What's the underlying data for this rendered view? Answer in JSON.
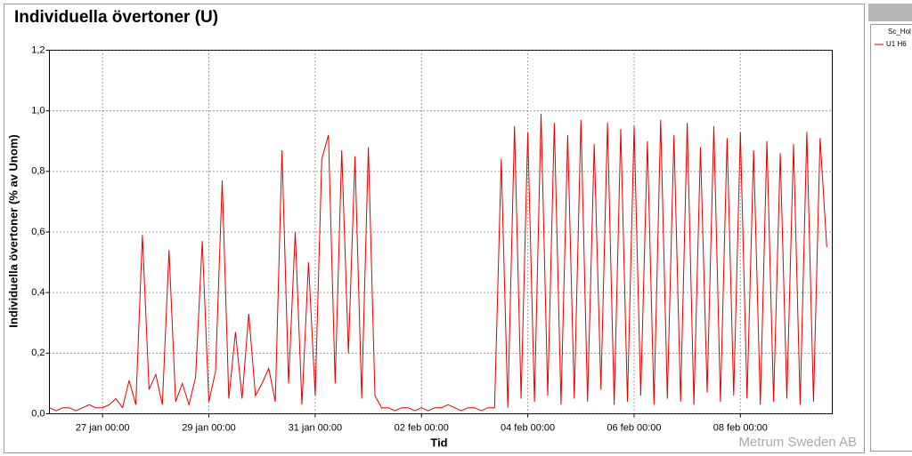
{
  "chart_data": {
    "type": "line",
    "title": "Individuella övertoner (U)",
    "x_label": "Tid",
    "y_label": "Individuella övertoner (% av Unom)",
    "watermark": "Metrum Sweden AB",
    "legend_title": "Sc_Hol",
    "grid": true,
    "xlim": [
      "26 jan 00:00",
      "9 feb 17:30"
    ],
    "xticks": [
      "27 jan 00:00",
      "29 jan 00:00",
      "31 jan 00:00",
      "02 feb 00:00",
      "04 feb 00:00",
      "06 feb 00:00",
      "08 feb 00:00"
    ],
    "ylim": [
      0,
      1.2
    ],
    "yticks": [
      {
        "value": 0,
        "label": "0,0"
      },
      {
        "value": 0.2,
        "label": "0,2"
      },
      {
        "value": 0.4,
        "label": "0,4"
      },
      {
        "value": 0.6,
        "label": "0,6"
      },
      {
        "value": 0.8,
        "label": "0,8"
      },
      {
        "value": 1,
        "label": "1,0"
      },
      {
        "value": 1.2,
        "label": "1,2"
      }
    ],
    "x": [
      "26 jan 00:00",
      "26 jan 03:00",
      "26 jan 06:00",
      "26 jan 09:00",
      "26 jan 12:00",
      "26 jan 15:00",
      "26 jan 18:00",
      "26 jan 21:00",
      "27 jan 00:00",
      "27 jan 03:00",
      "27 jan 06:00",
      "27 jan 09:00",
      "27 jan 12:00",
      "27 jan 15:00",
      "27 jan 18:00",
      "27 jan 21:00",
      "28 jan 00:00",
      "28 jan 03:00",
      "28 jan 06:00",
      "28 jan 09:00",
      "28 jan 12:00",
      "28 jan 15:00",
      "28 jan 18:00",
      "28 jan 21:00",
      "29 jan 00:00",
      "29 jan 03:00",
      "29 jan 06:00",
      "29 jan 09:00",
      "29 jan 12:00",
      "29 jan 15:00",
      "29 jan 18:00",
      "29 jan 21:00",
      "30 jan 00:00",
      "30 jan 03:00",
      "30 jan 06:00",
      "30 jan 09:00",
      "30 jan 12:00",
      "30 jan 15:00",
      "30 jan 18:00",
      "30 jan 21:00",
      "31 jan 00:00",
      "31 jan 03:00",
      "31 jan 06:00",
      "31 jan 09:00",
      "31 jan 12:00",
      "31 jan 15:00",
      "31 jan 18:00",
      "31 jan 21:00",
      "01 feb 00:00",
      "01 feb 03:00",
      "01 feb 06:00",
      "01 feb 09:00",
      "01 feb 12:00",
      "01 feb 15:00",
      "01 feb 18:00",
      "01 feb 21:00",
      "02 feb 00:00",
      "02 feb 03:00",
      "02 feb 06:00",
      "02 feb 09:00",
      "02 feb 12:00",
      "02 feb 15:00",
      "02 feb 18:00",
      "02 feb 21:00",
      "03 feb 00:00",
      "03 feb 03:00",
      "03 feb 06:00",
      "03 feb 09:00",
      "03 feb 12:00",
      "03 feb 15:00",
      "03 feb 18:00",
      "03 feb 21:00",
      "04 feb 00:00",
      "04 feb 03:00",
      "04 feb 06:00",
      "04 feb 09:00",
      "04 feb 12:00",
      "04 feb 15:00",
      "04 feb 18:00",
      "04 feb 21:00",
      "05 feb 00:00",
      "05 feb 03:00",
      "05 feb 06:00",
      "05 feb 09:00",
      "05 feb 12:00",
      "05 feb 15:00",
      "05 feb 18:00",
      "05 feb 21:00",
      "06 feb 00:00",
      "06 feb 03:00",
      "06 feb 06:00",
      "06 feb 09:00",
      "06 feb 12:00",
      "06 feb 15:00",
      "06 feb 18:00",
      "06 feb 21:00",
      "07 feb 00:00",
      "07 feb 03:00",
      "07 feb 06:00",
      "07 feb 09:00",
      "07 feb 12:00",
      "07 feb 15:00",
      "07 feb 18:00",
      "07 feb 21:00",
      "08 feb 00:00",
      "08 feb 03:00",
      "08 feb 06:00",
      "08 feb 09:00",
      "08 feb 12:00",
      "08 feb 15:00",
      "08 feb 18:00",
      "08 feb 21:00",
      "09 feb 00:00",
      "09 feb 03:00",
      "09 feb 06:00",
      "09 feb 09:00",
      "09 feb 12:00",
      "09 feb 15:00"
    ],
    "series": [
      {
        "name": "U1 H6",
        "color": "#e00000",
        "values": [
          0.02,
          0.01,
          0.02,
          0.02,
          0.01,
          0.02,
          0.03,
          0.02,
          0.02,
          0.03,
          0.05,
          0.02,
          0.11,
          0.03,
          0.59,
          0.08,
          0.13,
          0.03,
          0.54,
          0.04,
          0.1,
          0.03,
          0.12,
          0.57,
          0.04,
          0.14,
          0.77,
          0.05,
          0.27,
          0.05,
          0.33,
          0.06,
          0.1,
          0.15,
          0.04,
          0.87,
          0.1,
          0.6,
          0.03,
          0.5,
          0.06,
          0.84,
          0.92,
          0.1,
          0.87,
          0.2,
          0.85,
          0.05,
          0.88,
          0.06,
          0.02,
          0.02,
          0.01,
          0.02,
          0.02,
          0.01,
          0.02,
          0.01,
          0.02,
          0.02,
          0.03,
          0.02,
          0.01,
          0.02,
          0.02,
          0.01,
          0.02,
          0.02,
          0.84,
          0.02,
          0.95,
          0.05,
          0.93,
          0.04,
          0.99,
          0.06,
          0.96,
          0.03,
          0.92,
          0.05,
          0.97,
          0.04,
          0.89,
          0.08,
          0.96,
          0.03,
          0.94,
          0.04,
          0.95,
          0.06,
          0.9,
          0.03,
          0.97,
          0.05,
          0.92,
          0.04,
          0.96,
          0.03,
          0.88,
          0.07,
          0.95,
          0.04,
          0.91,
          0.06,
          0.93,
          0.05,
          0.87,
          0.03,
          0.9,
          0.04,
          0.86,
          0.05,
          0.89,
          0.03,
          0.93,
          0.04,
          0.91,
          0.55
        ]
      }
    ]
  }
}
